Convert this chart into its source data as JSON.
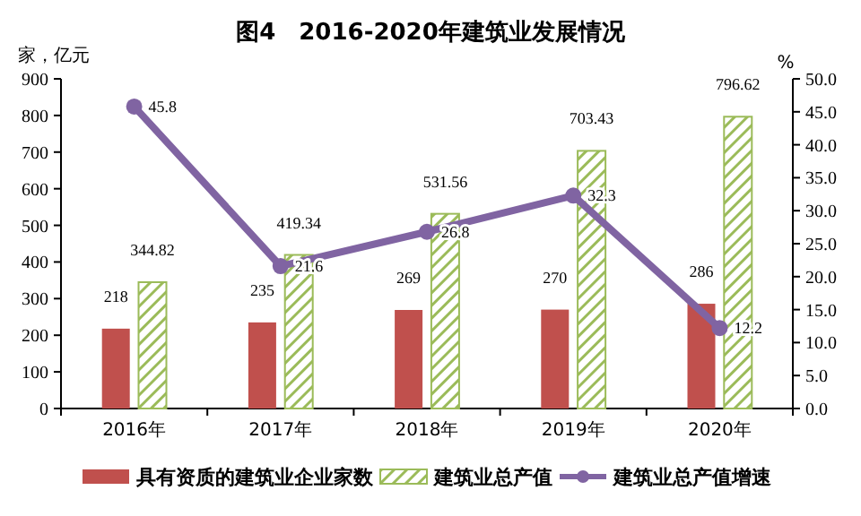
{
  "chart_data": {
    "type": "bar",
    "title": "图4　2016-2020年建筑业发展情况",
    "ylabel": "家，亿元",
    "y2label": "%",
    "categories": [
      "2016年",
      "2017年",
      "2018年",
      "2019年",
      "2020年"
    ],
    "series": [
      {
        "name": "具有资质的建筑业企业家数",
        "color": "#c0504d",
        "values": [
          218,
          235,
          269,
          270,
          286
        ]
      },
      {
        "name": "建筑业总产值",
        "color": "#9bbb59",
        "values": [
          344.82,
          419.34,
          531.56,
          703.43,
          796.62
        ]
      },
      {
        "name": "建筑业总产值增速",
        "type": "line",
        "axis": "y2",
        "color": "#8064a2",
        "values": [
          45.8,
          21.6,
          26.8,
          32.3,
          12.2
        ]
      }
    ],
    "ylim": [
      0,
      900
    ],
    "yticks": [
      0,
      100,
      200,
      300,
      400,
      500,
      600,
      700,
      800,
      900
    ],
    "y2lim": [
      0,
      50
    ],
    "y2ticks": [
      {
        "value": 0,
        "label": "0.0"
      },
      {
        "value": 5,
        "label": "5.0"
      },
      {
        "value": 10,
        "label": "10.0"
      },
      {
        "value": 15,
        "label": "15.0"
      },
      {
        "value": 20,
        "label": "20.0"
      },
      {
        "value": 25,
        "label": "25.0"
      },
      {
        "value": 30,
        "label": "30.0"
      },
      {
        "value": 35,
        "label": "35.0"
      },
      {
        "value": 40,
        "label": "40.0"
      },
      {
        "value": 45,
        "label": "45.0"
      },
      {
        "value": 50,
        "label": "50.0"
      }
    ],
    "data_labels": true,
    "legend": "bottom",
    "marker": "circle",
    "grid": false
  }
}
